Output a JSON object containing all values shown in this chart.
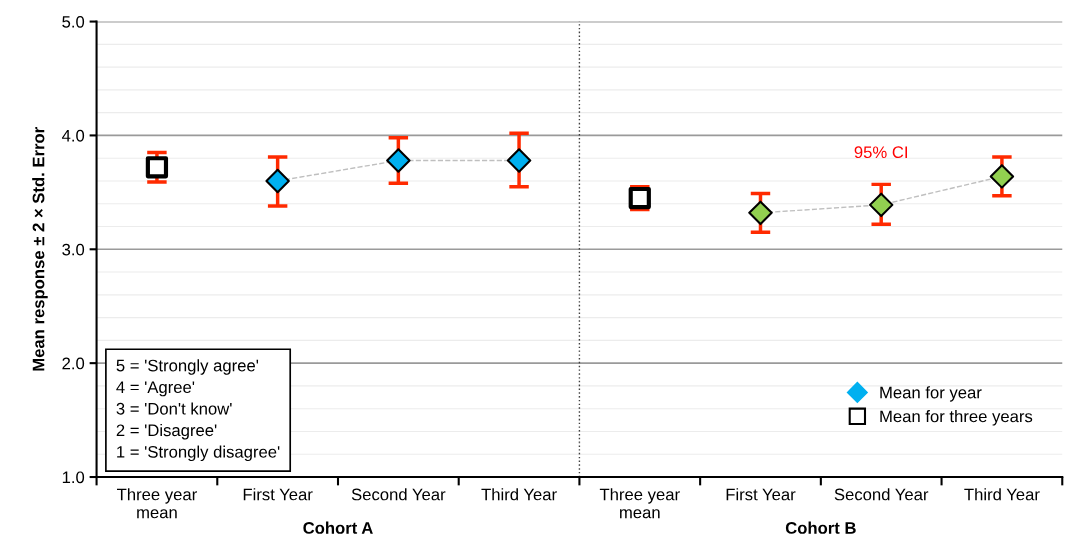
{
  "chart_data": {
    "type": "scatter",
    "ylabel": "Mean response ± 2 × Std. Error",
    "categories": [
      "Three year\nmean",
      "First Year",
      "Second Year",
      "Third Year",
      "Three year\nmean",
      "First Year",
      "Second Year",
      "Third Year"
    ],
    "series": [
      {
        "name": "Mean for year",
        "type": "line",
        "marker": "diamond",
        "line_style": "dashed",
        "color": "#bfbfbf",
        "colors": [
          null,
          "#00b0f0",
          "#00b0f0",
          "#00b0f0",
          null,
          "#92d050",
          "#92d050",
          "#92d050"
        ],
        "values": [
          null,
          3.6,
          3.78,
          3.78,
          null,
          3.32,
          3.39,
          3.64
        ],
        "errors": [
          null,
          [
            3.38,
            3.81
          ],
          [
            3.58,
            3.98
          ],
          [
            3.55,
            4.02
          ],
          null,
          [
            3.15,
            3.49
          ],
          [
            3.22,
            3.57
          ],
          [
            3.47,
            3.81
          ]
        ]
      },
      {
        "name": "Mean for three years",
        "marker": "square",
        "color": "#000000",
        "values": [
          3.72,
          null,
          null,
          null,
          3.45,
          null,
          null,
          null
        ],
        "errors": [
          [
            3.59,
            3.85
          ],
          null,
          null,
          null,
          [
            3.35,
            3.55
          ],
          null,
          null,
          null
        ]
      }
    ],
    "ylim": [
      1.0,
      5.0
    ],
    "yticks": [
      {
        "value": 1,
        "label": "1.0"
      },
      {
        "value": 1.2,
        "label": null
      },
      {
        "value": 1.4,
        "label": null
      },
      {
        "value": 1.6,
        "label": null
      },
      {
        "value": 1.8,
        "label": null
      },
      {
        "value": 2,
        "label": "2.0"
      },
      {
        "value": 2.2,
        "label": null
      },
      {
        "value": 2.4,
        "label": null
      },
      {
        "value": 2.6,
        "label": null
      },
      {
        "value": 2.8,
        "label": null
      },
      {
        "value": 3,
        "label": "3.0"
      },
      {
        "value": 3.2,
        "label": null
      },
      {
        "value": 3.4,
        "label": null
      },
      {
        "value": 3.6,
        "label": null
      },
      {
        "value": 3.8,
        "label": null
      },
      {
        "value": 4,
        "label": "4.0"
      },
      {
        "value": 4.2,
        "label": null
      },
      {
        "value": 4.4,
        "label": null
      },
      {
        "value": 4.6,
        "label": null
      },
      {
        "value": 4.8,
        "label": null
      },
      {
        "value": 5,
        "label": "5.0"
      }
    ],
    "grid": "y",
    "legend": "bottom right",
    "annotations": [
      "Cohort A",
      "Cohort B",
      "95% CI",
      "5 = 'Strongly agree'\n4 = 'Agree'\n3 = 'Don't know'\n2 = 'Disagree'\n1 = 'Strongly disagree'"
    ]
  }
}
